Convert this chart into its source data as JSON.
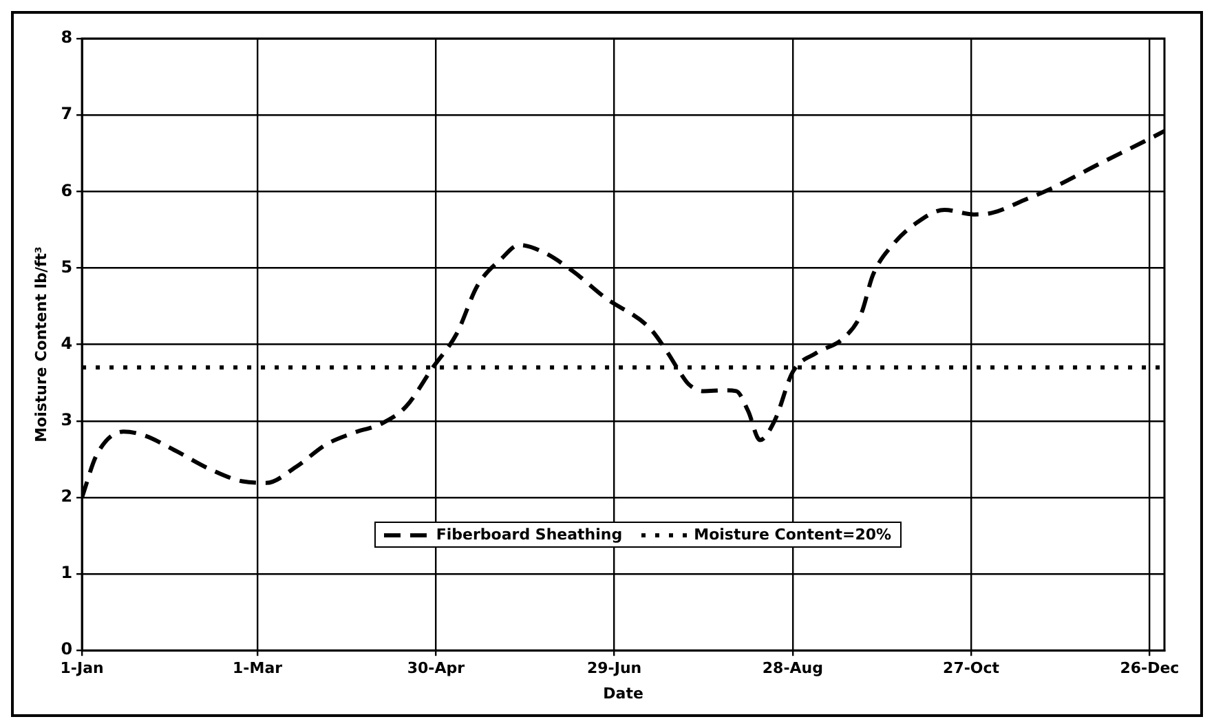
{
  "chart_data": {
    "type": "line",
    "xlabel": "Date",
    "ylabel": "Moisture Content lb/ft³",
    "xlim": [
      "--01-01",
      "--12-31"
    ],
    "xticks": [
      {
        "value": "--01-01",
        "label": "1-Jan"
      },
      {
        "value": "--03-01",
        "label": "1-Mar"
      },
      {
        "value": "--04-30",
        "label": "30-Apr"
      },
      {
        "value": "--06-29",
        "label": "29-Jun"
      },
      {
        "value": "--08-28",
        "label": "28-Aug"
      },
      {
        "value": "--10-27",
        "label": "27-Oct"
      },
      {
        "value": "--12-26",
        "label": "26-Dec"
      }
    ],
    "ylim": [
      0,
      8
    ],
    "yticks": [
      0,
      1,
      2,
      3,
      4,
      5,
      6,
      7,
      8
    ],
    "grid": true,
    "legend": "bottom",
    "marker": "none",
    "series": [
      {
        "name": "Fiberboard Sheathing",
        "color": "#000000",
        "line_style": "dashed",
        "x": [
          "--01-01",
          "--01-06",
          "--01-15",
          "--01-22",
          "--02-01",
          "--02-13",
          "--02-24",
          "--03-04",
          "--03-14",
          "--03-24",
          "--04-02",
          "--04-12",
          "--04-20",
          "--04-29",
          "--05-07",
          "--05-14",
          "--05-22",
          "--05-28",
          "--06-05",
          "--06-15",
          "--06-26",
          "--07-11",
          "--07-17",
          "--07-21",
          "--07-24",
          "--07-29",
          "--08-05",
          "--08-09",
          "--08-13",
          "--08-17",
          "--08-22",
          "--08-28",
          "--09-05",
          "--09-14",
          "--09-20",
          "--09-24",
          "--10-01",
          "--10-09",
          "--10-18",
          "--10-28",
          "--11-03",
          "--11-14",
          "--11-23",
          "--12-09",
          "--12-24",
          "--12-31"
        ],
        "values": [
          2.0,
          2.56,
          2.86,
          2.81,
          2.62,
          2.37,
          2.21,
          2.19,
          2.4,
          2.69,
          2.84,
          2.97,
          3.19,
          3.7,
          4.14,
          4.77,
          5.12,
          5.3,
          5.21,
          4.96,
          4.61,
          4.21,
          3.89,
          3.64,
          3.48,
          3.39,
          3.4,
          3.39,
          3.13,
          2.75,
          3.01,
          3.64,
          3.89,
          4.08,
          4.4,
          4.91,
          5.32,
          5.6,
          5.76,
          5.7,
          5.72,
          5.89,
          6.04,
          6.36,
          6.65,
          6.79
        ]
      },
      {
        "name": "Moisture Content=20%",
        "color": "#000000",
        "line_style": "dotted",
        "x": [
          "--01-01",
          "--12-31"
        ],
        "values": [
          3.7,
          3.7
        ]
      }
    ]
  }
}
